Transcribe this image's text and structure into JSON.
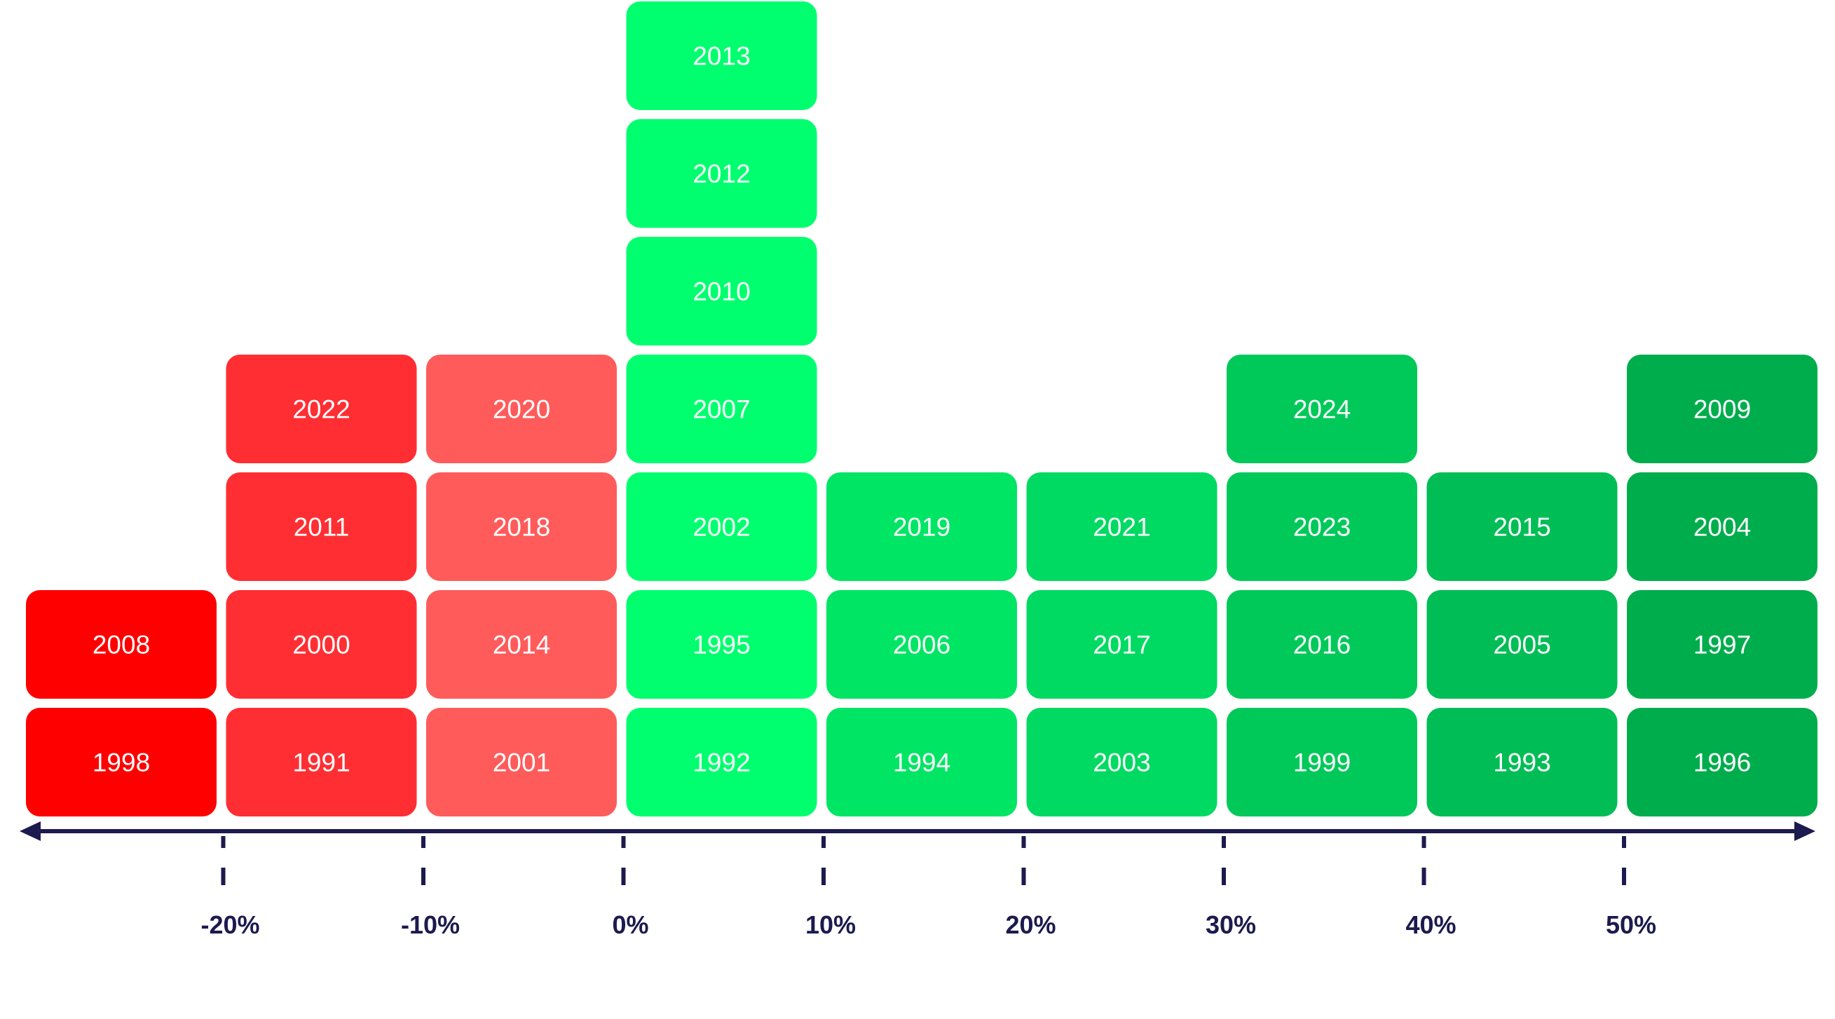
{
  "chart_data": {
    "type": "histogram",
    "title": "",
    "xlabel": "",
    "ylabel": "",
    "x_axis": {
      "ticks": [
        -20,
        -10,
        0,
        10,
        20,
        30,
        40,
        50
      ],
      "tick_labels": [
        "-20%",
        "-10%",
        "0%",
        "10%",
        "20%",
        "30%",
        "40%",
        "50%"
      ],
      "range": [
        -30,
        60
      ],
      "arrows_both_ends": true,
      "color": "#1c1a4e"
    },
    "grid": false,
    "legend": "none",
    "bins": [
      {
        "range": [
          -30,
          -20
        ],
        "color": "#ff0000",
        "years": [
          "1998",
          "2008"
        ]
      },
      {
        "range": [
          -20,
          -10
        ],
        "color": "#ff2e33",
        "years": [
          "1991",
          "2000",
          "2011",
          "2022"
        ]
      },
      {
        "range": [
          -10,
          0
        ],
        "color": "#ff5b5b",
        "years": [
          "2001",
          "2014",
          "2018",
          "2020"
        ]
      },
      {
        "range": [
          0,
          10
        ],
        "color": "#00ff6e",
        "years": [
          "1992",
          "1995",
          "2002",
          "2007",
          "2010",
          "2012",
          "2013"
        ]
      },
      {
        "range": [
          10,
          20
        ],
        "color": "#00e564",
        "years": [
          "1994",
          "2006",
          "2019"
        ]
      },
      {
        "range": [
          20,
          30
        ],
        "color": "#00da62",
        "years": [
          "2003",
          "2017",
          "2021"
        ]
      },
      {
        "range": [
          30,
          40
        ],
        "color": "#00c95a",
        "years": [
          "1999",
          "2016",
          "2023",
          "2024"
        ]
      },
      {
        "range": [
          40,
          50
        ],
        "color": "#00bd55",
        "years": [
          "1993",
          "2005",
          "2015"
        ]
      },
      {
        "range": [
          50,
          60
        ],
        "color": "#00ad4c",
        "years": [
          "1996",
          "1997",
          "2004",
          "2009"
        ]
      }
    ]
  }
}
